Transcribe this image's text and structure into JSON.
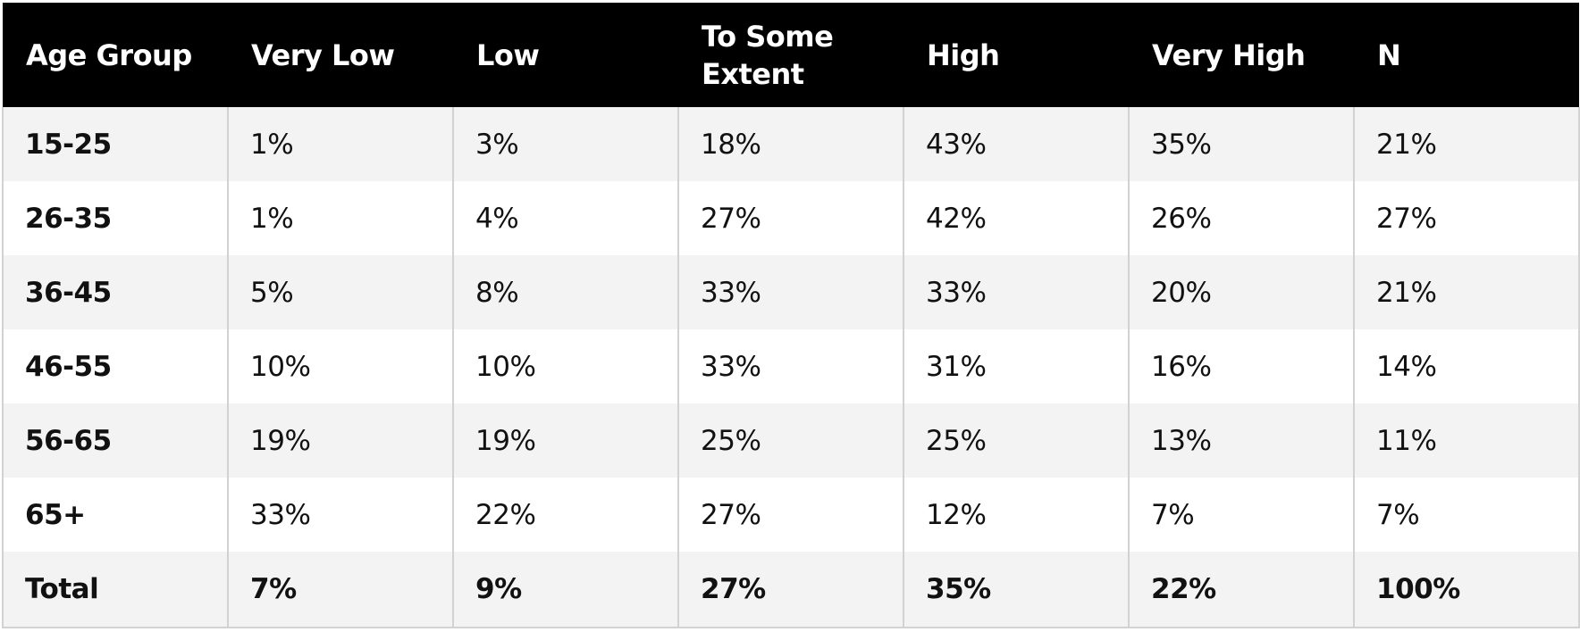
{
  "table": {
    "headers": [
      "Age Group",
      "Very Low",
      "Low",
      "To Some Extent",
      "High",
      "Very High",
      "N"
    ],
    "rows": [
      [
        "15-25",
        "1%",
        "3%",
        "18%",
        "43%",
        "35%",
        "21%"
      ],
      [
        "26-35",
        "1%",
        "4%",
        "27%",
        "42%",
        "26%",
        "27%"
      ],
      [
        "36-45",
        "5%",
        "8%",
        "33%",
        "33%",
        "20%",
        "21%"
      ],
      [
        "46-55",
        "10%",
        "10%",
        "33%",
        "31%",
        "16%",
        "14%"
      ],
      [
        "56-65",
        "19%",
        "19%",
        "25%",
        "25%",
        "13%",
        "11%"
      ],
      [
        "65+",
        "33%",
        "22%",
        "27%",
        "12%",
        "7%",
        "7%"
      ]
    ],
    "total": [
      "Total",
      "7%",
      "9%",
      "27%",
      "35%",
      "22%",
      "100%"
    ]
  },
  "colors": {
    "header_bg": "#000000",
    "header_text": "#ffffff",
    "row_alt_bg": "#f3f3f3",
    "row_bg": "#ffffff",
    "grid_line": "#d2d2d2"
  }
}
